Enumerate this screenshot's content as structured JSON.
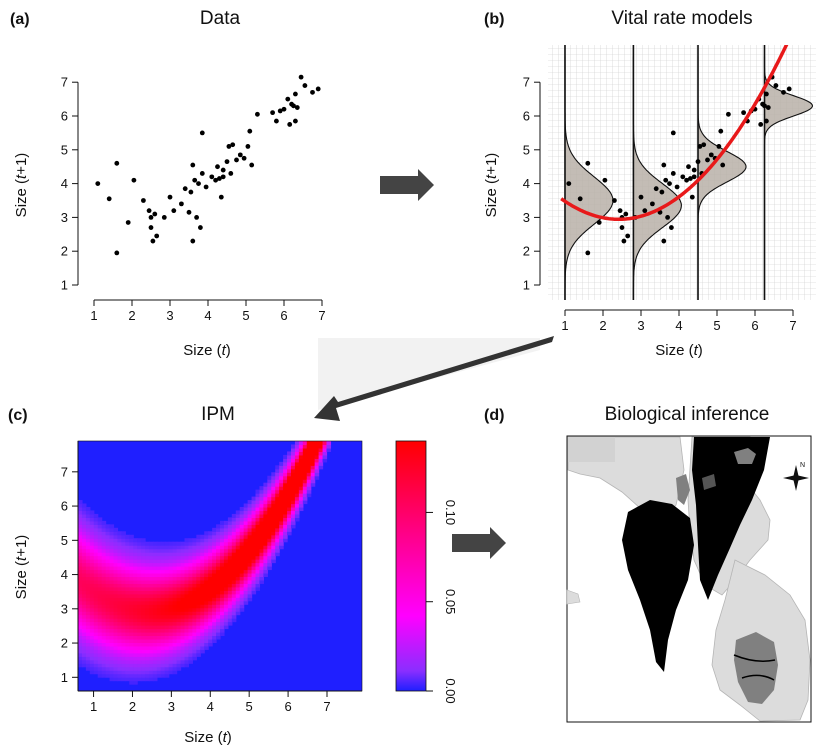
{
  "colors": {
    "red": "#e8191a",
    "blue": "#1f1fff",
    "magenta": "#ff00ff",
    "arrow": "#444444",
    "map_land": "#dcdcdc",
    "map_black": "#000000",
    "map_grey": "#808080"
  },
  "panels": {
    "a": {
      "label": "(a)",
      "title": "Data"
    },
    "b": {
      "label": "(b)",
      "title": "Vital rate models"
    },
    "c": {
      "label": "(c)",
      "title": "IPM"
    },
    "d": {
      "label": "(d)",
      "title": "Biological inference"
    }
  },
  "axis_labels": {
    "x_pre": "Size (",
    "x_t": "t",
    "x_post": ")",
    "y_pre": "Size (",
    "y_t": "t",
    "y_post": "+1)"
  },
  "compass": {
    "n": "N"
  },
  "chart_data": [
    {
      "panel": "a",
      "type": "scatter",
      "title": "Data",
      "xlabel": "Size (t)",
      "ylabel": "Size (t+1)",
      "xlim": [
        1,
        7
      ],
      "ylim": [
        1,
        7
      ],
      "xticks": [
        1,
        2,
        3,
        4,
        5,
        6,
        7
      ],
      "yticks": [
        1,
        2,
        3,
        4,
        5,
        6,
        7
      ],
      "points": [
        [
          1.1,
          4.0
        ],
        [
          1.4,
          3.55
        ],
        [
          1.6,
          4.6
        ],
        [
          1.6,
          1.95
        ],
        [
          1.9,
          2.85
        ],
        [
          2.05,
          4.1
        ],
        [
          2.3,
          3.5
        ],
        [
          2.45,
          3.2
        ],
        [
          2.5,
          3.0
        ],
        [
          2.5,
          2.7
        ],
        [
          2.55,
          2.3
        ],
        [
          2.6,
          3.1
        ],
        [
          2.65,
          2.45
        ],
        [
          2.85,
          3.0
        ],
        [
          3.0,
          3.6
        ],
        [
          3.1,
          3.2
        ],
        [
          3.3,
          3.4
        ],
        [
          3.4,
          3.85
        ],
        [
          3.5,
          3.15
        ],
        [
          3.55,
          3.75
        ],
        [
          3.6,
          2.3
        ],
        [
          3.6,
          4.55
        ],
        [
          3.65,
          4.1
        ],
        [
          3.7,
          3.0
        ],
        [
          3.75,
          4.0
        ],
        [
          3.8,
          2.7
        ],
        [
          3.85,
          4.3
        ],
        [
          3.85,
          5.5
        ],
        [
          3.95,
          3.9
        ],
        [
          4.1,
          4.2
        ],
        [
          4.2,
          4.1
        ],
        [
          4.25,
          4.5
        ],
        [
          4.3,
          4.15
        ],
        [
          4.35,
          3.6
        ],
        [
          4.4,
          4.2
        ],
        [
          4.4,
          4.4
        ],
        [
          4.5,
          4.65
        ],
        [
          4.55,
          5.1
        ],
        [
          4.6,
          4.3
        ],
        [
          4.65,
          5.15
        ],
        [
          4.75,
          4.7
        ],
        [
          4.85,
          4.85
        ],
        [
          4.95,
          4.75
        ],
        [
          5.05,
          5.1
        ],
        [
          5.1,
          5.55
        ],
        [
          5.15,
          4.55
        ],
        [
          5.3,
          6.05
        ],
        [
          5.7,
          6.1
        ],
        [
          5.8,
          5.85
        ],
        [
          5.9,
          6.15
        ],
        [
          6.0,
          6.2
        ],
        [
          6.1,
          6.5
        ],
        [
          6.15,
          5.75
        ],
        [
          6.2,
          6.35
        ],
        [
          6.25,
          6.3
        ],
        [
          6.3,
          5.85
        ],
        [
          6.3,
          6.65
        ],
        [
          6.35,
          6.25
        ],
        [
          6.45,
          7.15
        ],
        [
          6.55,
          6.9
        ],
        [
          6.75,
          6.7
        ],
        [
          6.9,
          6.8
        ]
      ]
    },
    {
      "panel": "b",
      "type": "scatter",
      "title": "Vital rate models",
      "xlabel": "Size (t)",
      "ylabel": "Size (t+1)",
      "xlim": [
        1,
        7
      ],
      "ylim": [
        1,
        7
      ],
      "xticks": [
        1,
        2,
        3,
        4,
        5,
        6,
        7
      ],
      "yticks": [
        1,
        2,
        3,
        4,
        5,
        6,
        7
      ],
      "grid": true,
      "growth_curve": {
        "x_range": [
          1.0,
          7.4
        ],
        "coefficients": [
          4.49,
          -1.28,
          0.265
        ]
      },
      "densities": [
        {
          "x": 1.0,
          "mean": 3.5,
          "sd": 0.7
        },
        {
          "x": 2.8,
          "mean": 3.35,
          "sd": 0.65
        },
        {
          "x": 4.5,
          "mean": 4.5,
          "sd": 0.45
        },
        {
          "x": 6.25,
          "mean": 6.3,
          "sd": 0.3
        }
      ],
      "points": [
        [
          1.1,
          4.0
        ],
        [
          1.4,
          3.55
        ],
        [
          1.6,
          4.6
        ],
        [
          1.6,
          1.95
        ],
        [
          1.9,
          2.85
        ],
        [
          2.05,
          4.1
        ],
        [
          2.3,
          3.5
        ],
        [
          2.45,
          3.2
        ],
        [
          2.5,
          3.0
        ],
        [
          2.5,
          2.7
        ],
        [
          2.55,
          2.3
        ],
        [
          2.6,
          3.1
        ],
        [
          2.65,
          2.45
        ],
        [
          2.85,
          3.0
        ],
        [
          3.0,
          3.6
        ],
        [
          3.1,
          3.2
        ],
        [
          3.3,
          3.4
        ],
        [
          3.4,
          3.85
        ],
        [
          3.5,
          3.15
        ],
        [
          3.55,
          3.75
        ],
        [
          3.6,
          2.3
        ],
        [
          3.6,
          4.55
        ],
        [
          3.65,
          4.1
        ],
        [
          3.7,
          3.0
        ],
        [
          3.75,
          4.0
        ],
        [
          3.8,
          2.7
        ],
        [
          3.85,
          4.3
        ],
        [
          3.85,
          5.5
        ],
        [
          3.95,
          3.9
        ],
        [
          4.1,
          4.2
        ],
        [
          4.2,
          4.1
        ],
        [
          4.25,
          4.5
        ],
        [
          4.3,
          4.15
        ],
        [
          4.35,
          3.6
        ],
        [
          4.4,
          4.2
        ],
        [
          4.4,
          4.4
        ],
        [
          4.5,
          4.65
        ],
        [
          4.55,
          5.1
        ],
        [
          4.6,
          4.3
        ],
        [
          4.65,
          5.15
        ],
        [
          4.75,
          4.7
        ],
        [
          4.85,
          4.85
        ],
        [
          4.95,
          4.75
        ],
        [
          5.05,
          5.1
        ],
        [
          5.1,
          5.55
        ],
        [
          5.15,
          4.55
        ],
        [
          5.3,
          6.05
        ],
        [
          5.7,
          6.1
        ],
        [
          5.8,
          5.85
        ],
        [
          5.9,
          6.15
        ],
        [
          6.0,
          6.2
        ],
        [
          6.1,
          6.5
        ],
        [
          6.15,
          5.75
        ],
        [
          6.2,
          6.35
        ],
        [
          6.25,
          6.3
        ],
        [
          6.3,
          5.85
        ],
        [
          6.3,
          6.65
        ],
        [
          6.35,
          6.25
        ],
        [
          6.45,
          7.15
        ],
        [
          6.55,
          6.9
        ],
        [
          6.75,
          6.7
        ],
        [
          6.9,
          6.8
        ]
      ]
    },
    {
      "panel": "c",
      "type": "heatmap",
      "title": "IPM",
      "xlabel": "Size (t)",
      "ylabel": "Size (t+1)",
      "xlim": [
        0.6,
        7.9
      ],
      "ylim": [
        0.6,
        7.9
      ],
      "xticks": [
        1,
        2,
        3,
        4,
        5,
        6,
        7
      ],
      "yticks": [
        1,
        2,
        3,
        4,
        5,
        6,
        7
      ],
      "mean_curve": [
        4.49,
        -1.28,
        0.265
      ],
      "sd_at_x": [
        [
          0.6,
          0.95
        ],
        [
          8.0,
          0.25
        ]
      ],
      "colorbar": {
        "min": 0.0,
        "max": 0.14,
        "ticks": [
          "0.00",
          "0.05",
          "0.10"
        ],
        "tick_values": [
          0.0,
          0.05,
          0.1
        ]
      }
    }
  ]
}
